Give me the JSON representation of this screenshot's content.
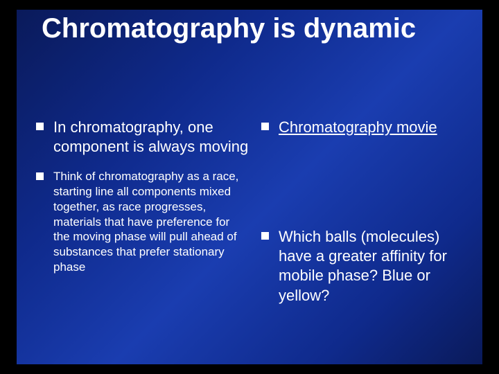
{
  "slide": {
    "title": "Chromatography is dynamic",
    "title_fontsize": 40,
    "background_outer": "#000000",
    "background_gradient": [
      "#0a1a5a",
      "#0f2a8c",
      "#1a3db0",
      "#0f2a8c",
      "#0a1a5a"
    ],
    "text_color": "#ffffff",
    "bullet_color": "#ffffff",
    "left_column": [
      {
        "text": "In chromatography, one component is always moving",
        "fontsize": 22,
        "is_link": false
      },
      {
        "text": "Think of chromatography as a race, starting line all components mixed together, as race progresses, materials that have preference for the moving phase will pull ahead of substances that prefer stationary phase",
        "fontsize": 17,
        "is_link": false
      }
    ],
    "right_column": [
      {
        "text": "Chromatography movie",
        "fontsize": 22,
        "is_link": true
      },
      {
        "text": "Which balls (molecules) have a greater affinity for mobile phase?  Blue or yellow?",
        "fontsize": 22,
        "is_link": false
      }
    ],
    "right_column_gap": 112
  }
}
